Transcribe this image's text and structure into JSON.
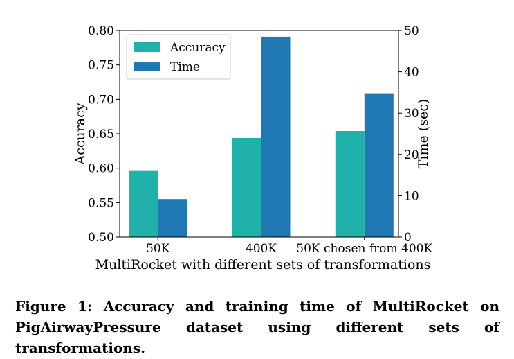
{
  "chart_data": {
    "type": "bar",
    "categories": [
      "50K",
      "400K",
      "50K chosen from 400K"
    ],
    "series": [
      {
        "name": "Accuracy",
        "axis": "left",
        "color": "#20b2aa",
        "values": [
          0.596,
          0.644,
          0.654
        ]
      },
      {
        "name": "Time",
        "axis": "right",
        "color": "#1f77b4",
        "values": [
          9.2,
          48.5,
          34.8
        ]
      }
    ],
    "xlabel": "MultiRocket with different sets of transformations",
    "ylabel": "Accuracy",
    "ylabel_right": "Time (sec)",
    "ylim": [
      0.5,
      0.8
    ],
    "ylim_right": [
      0,
      50
    ],
    "yticks": [
      "0.50",
      "0.55",
      "0.60",
      "0.65",
      "0.70",
      "0.75",
      "0.80"
    ],
    "yticks_right": [
      "0",
      "10",
      "20",
      "30",
      "40",
      "50"
    ],
    "legend_position": "top-left",
    "grid": false
  },
  "caption": "Figure 1: Accuracy and training time of MultiRocket on PigAirwayPressure dataset using different sets of transformations."
}
